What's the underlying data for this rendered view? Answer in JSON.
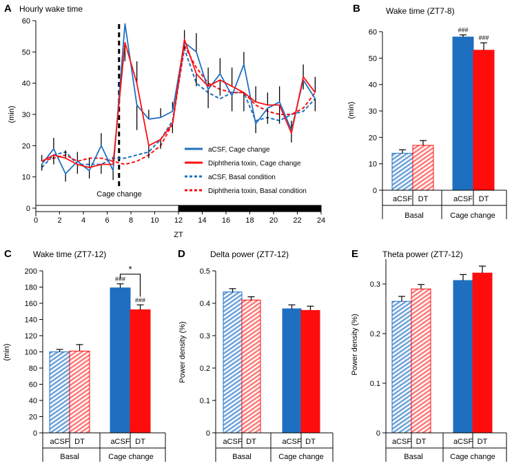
{
  "colors": {
    "acsf": "#1f6fc1",
    "dt": "#ff0d0d",
    "acsf_light": "#8db6e3",
    "dt_light": "#ff8f8f"
  },
  "chart_data": [
    {
      "id": "A",
      "type": "line",
      "panel_label": "A",
      "title": "Hourly wake time",
      "xlabel": "ZT",
      "ylabel": "(min)",
      "xlim": [
        0,
        24
      ],
      "ylim": [
        0,
        60
      ],
      "xticks": [
        0,
        2,
        4,
        6,
        8,
        10,
        12,
        14,
        16,
        18,
        20,
        22,
        24
      ],
      "yticks": [
        0,
        10,
        20,
        30,
        40,
        50,
        60
      ],
      "annotation": "Cage change",
      "cage_change_zt": 7,
      "light_dark_bar": {
        "light": [
          0,
          12
        ],
        "dark": [
          12,
          24
        ]
      },
      "x": [
        0.5,
        1.5,
        2.5,
        3.5,
        4.5,
        5.5,
        6.5,
        7.5,
        8.5,
        9.5,
        10.5,
        11.5,
        12.5,
        13.5,
        14.5,
        15.5,
        16.5,
        17.5,
        18.5,
        19.5,
        20.5,
        21.5,
        22.5,
        23.5
      ],
      "series": [
        {
          "name": "aCSF, Cage change",
          "color": "acsf",
          "dash": false,
          "values": [
            14,
            19,
            11,
            15,
            12,
            20,
            12,
            59,
            33,
            28.5,
            29,
            31,
            53,
            50,
            38,
            43,
            36,
            46,
            27,
            32,
            34,
            25,
            41,
            35
          ],
          "err": [
            2,
            3.5,
            2.5,
            3,
            2.5,
            4,
            3,
            0,
            8,
            3,
            3,
            3,
            2,
            6,
            6,
            5,
            5,
            4,
            3,
            5,
            5,
            3,
            3,
            4
          ]
        },
        {
          "name": "Diphtheria toxin, Cage change",
          "color": "dt",
          "dash": false,
          "values": [
            15,
            17,
            16,
            14,
            13,
            14,
            14,
            53,
            40,
            20,
            22,
            27,
            54,
            43,
            39,
            41,
            39,
            37,
            34,
            33,
            33,
            24,
            42,
            37
          ],
          "err": [
            2,
            3,
            2.5,
            3,
            3,
            3,
            2.5,
            6,
            7,
            4,
            3,
            3,
            3,
            4,
            6,
            5,
            6,
            6,
            5,
            4,
            6,
            3,
            4,
            5
          ]
        },
        {
          "name": "aCSF, Basal condition",
          "color": "acsf",
          "dash": true,
          "values": [
            13,
            17,
            18,
            14,
            14,
            14,
            16,
            16,
            17,
            18,
            22,
            28,
            51,
            40,
            37,
            35,
            37,
            37,
            28,
            29,
            28,
            30,
            31,
            35
          ],
          "err": []
        },
        {
          "name": "Diphtheria toxin, Basal condition",
          "color": "dt",
          "dash": true,
          "values": [
            15,
            16,
            17,
            15,
            16,
            16,
            15,
            14,
            15,
            17,
            20,
            27,
            52,
            45,
            40,
            38,
            37,
            37,
            33,
            31,
            30,
            30,
            32,
            37
          ],
          "err": []
        }
      ]
    },
    {
      "id": "B",
      "type": "bar",
      "panel_label": "B",
      "title": "Wake time (ZT7-8)",
      "ylabel": "(min)",
      "ylim": [
        0,
        60
      ],
      "yticks": [
        0,
        10,
        20,
        30,
        40,
        50,
        60
      ],
      "categories": [
        "aCSF",
        "DT",
        "aCSF",
        "DT"
      ],
      "groups": [
        "Basal",
        "Cage change"
      ],
      "values": [
        14,
        17,
        58,
        53
      ],
      "err": [
        1.3,
        1.8,
        0.8,
        2.8
      ],
      "bar_colors": [
        "acsf",
        "dt",
        "acsf",
        "dt"
      ],
      "hatched": [
        true,
        true,
        false,
        false
      ],
      "marks": [
        "",
        "",
        "###",
        "###"
      ],
      "significance": []
    },
    {
      "id": "C",
      "type": "bar",
      "panel_label": "C",
      "title": "Wake time (ZT7-12)",
      "ylabel": "(min)",
      "ylim": [
        0,
        200
      ],
      "yticks": [
        0,
        20,
        40,
        60,
        80,
        100,
        120,
        140,
        160,
        180,
        200
      ],
      "categories": [
        "aCSF",
        "DT",
        "aCSF",
        "DT"
      ],
      "groups": [
        "Basal",
        "Cage change"
      ],
      "values": [
        100,
        101,
        179,
        152
      ],
      "err": [
        3,
        8,
        5,
        6
      ],
      "bar_colors": [
        "acsf",
        "dt",
        "acsf",
        "dt"
      ],
      "hatched": [
        true,
        true,
        false,
        false
      ],
      "marks": [
        "",
        "",
        "###",
        "###"
      ],
      "significance": [
        {
          "from": 2,
          "to": 3,
          "label": "*"
        }
      ]
    },
    {
      "id": "D",
      "type": "bar",
      "panel_label": "D",
      "title": "Delta power (ZT7-12)",
      "ylabel": "Power density (%)",
      "ylim": [
        0,
        0.5
      ],
      "yticks": [
        0,
        0.1,
        0.2,
        0.3,
        0.4,
        0.5
      ],
      "categories": [
        "aCSF",
        "DT",
        "aCSF",
        "DT"
      ],
      "groups": [
        "Basal",
        "Cage change"
      ],
      "values": [
        0.435,
        0.41,
        0.383,
        0.378
      ],
      "err": [
        0.01,
        0.01,
        0.012,
        0.013
      ],
      "bar_colors": [
        "acsf",
        "dt",
        "acsf",
        "dt"
      ],
      "hatched": [
        true,
        true,
        false,
        false
      ],
      "marks": [
        "",
        "",
        "",
        ""
      ],
      "significance": []
    },
    {
      "id": "E",
      "type": "bar",
      "panel_label": "E",
      "title": "Theta power (ZT7-12)",
      "ylabel": "Power density (%)",
      "ylim": [
        0,
        0.35
      ],
      "yticks": [
        0,
        0.1,
        0.2,
        0.3
      ],
      "categories": [
        "aCSF",
        "DT",
        "aCSF",
        "DT"
      ],
      "groups": [
        "Basal",
        "Cage change"
      ],
      "values": [
        0.265,
        0.29,
        0.307,
        0.322
      ],
      "err": [
        0.01,
        0.009,
        0.012,
        0.014
      ],
      "bar_colors": [
        "acsf",
        "dt",
        "acsf",
        "dt"
      ],
      "hatched": [
        true,
        true,
        false,
        false
      ],
      "marks": [
        "",
        "",
        "",
        ""
      ],
      "significance": []
    }
  ]
}
